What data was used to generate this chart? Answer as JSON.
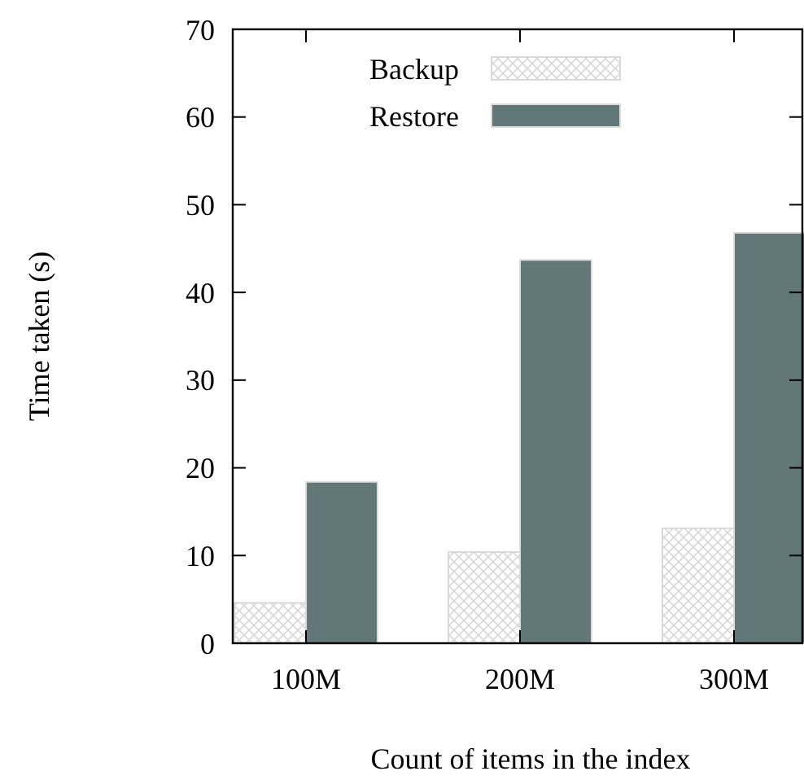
{
  "chart_data": {
    "type": "bar",
    "xlabel": "Count of items in the index",
    "ylabel": "Time taken (s)",
    "categories": [
      "100M",
      "200M",
      "300M"
    ],
    "series": [
      {
        "name": "Backup",
        "color": "#d9d9d9",
        "values": [
          4.6,
          10.4,
          13.1
        ]
      },
      {
        "name": "Restore",
        "color": "#627878",
        "values": [
          18.4,
          43.7,
          46.8
        ]
      }
    ],
    "ylim": [
      0,
      70
    ],
    "yticks": [
      0,
      10,
      20,
      30,
      40,
      50,
      60,
      70
    ],
    "legend": "top left",
    "grid": false
  }
}
